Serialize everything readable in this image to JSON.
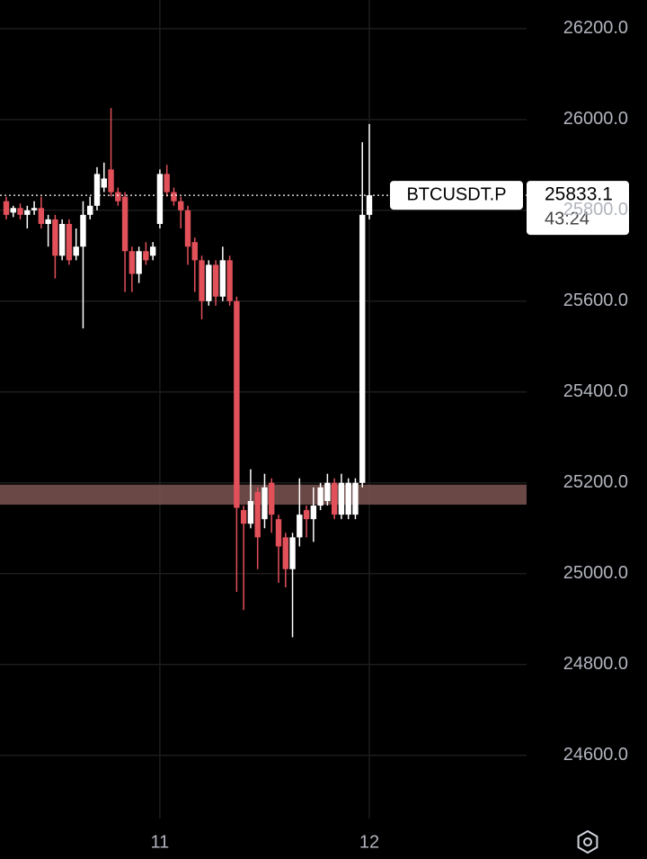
{
  "chart_data": {
    "type": "candlestick",
    "symbol": "BTCUSDT.P",
    "last_price": 25833.1,
    "countdown": "43:24",
    "categories": [
      null,
      null,
      null,
      null,
      null,
      null,
      null,
      null,
      null,
      null,
      null,
      null,
      null,
      null,
      null,
      null,
      null,
      null,
      null,
      null,
      null,
      null,
      "11",
      null,
      null,
      null,
      null,
      null,
      null,
      null,
      null,
      null,
      null,
      null,
      null,
      null,
      null,
      null,
      null,
      null,
      null,
      null,
      null,
      null,
      null,
      null,
      null,
      null,
      null,
      null,
      null,
      null,
      "12"
    ],
    "open": [
      25820,
      25795,
      25805,
      25790,
      25800,
      25805,
      25770,
      25780,
      25700,
      25770,
      25700,
      25720,
      25790,
      25810,
      25850,
      25890,
      25840,
      25830,
      25710,
      25660,
      25710,
      25700,
      25770,
      25880,
      25840,
      25820,
      25800,
      25730,
      25690,
      25600,
      25680,
      25610,
      25690,
      25600,
      25140,
      25110,
      25180,
      25120,
      25200,
      25120,
      25080,
      25010,
      25080,
      25140,
      25120,
      25150,
      25160,
      25200,
      25130,
      25130,
      25130,
      25200,
      25790
    ],
    "high": [
      25830,
      25810,
      25815,
      25810,
      25820,
      25830,
      25790,
      25790,
      25780,
      25780,
      25760,
      25820,
      25830,
      25895,
      25905,
      26025,
      25850,
      25840,
      25720,
      25720,
      25730,
      25730,
      25890,
      25900,
      25850,
      25830,
      25810,
      25740,
      25700,
      25690,
      25690,
      25720,
      25700,
      25610,
      25150,
      25230,
      25190,
      25220,
      25210,
      25130,
      25090,
      25090,
      25210,
      25150,
      25190,
      25200,
      25220,
      25210,
      25220,
      25210,
      25210,
      25950,
      25990
    ],
    "low": [
      25780,
      25785,
      25780,
      25760,
      25790,
      25760,
      25720,
      25650,
      25690,
      25680,
      25690,
      25540,
      25780,
      25800,
      25840,
      25830,
      25810,
      25620,
      25620,
      25640,
      25680,
      25690,
      25760,
      25830,
      25810,
      25760,
      25680,
      25620,
      25560,
      25590,
      25590,
      25600,
      25590,
      24960,
      24920,
      25100,
      25010,
      25100,
      25090,
      24980,
      24970,
      24860,
      25060,
      25080,
      25070,
      25140,
      25150,
      25120,
      25120,
      25120,
      25120,
      25190,
      25780
    ],
    "close": [
      25790,
      25805,
      25790,
      25800,
      25805,
      25770,
      25780,
      25700,
      25770,
      25690,
      25720,
      25790,
      25810,
      25880,
      25870,
      25840,
      25820,
      25710,
      25660,
      25710,
      25690,
      25720,
      25880,
      25840,
      25820,
      25800,
      25720,
      25690,
      25600,
      25680,
      25610,
      25690,
      25600,
      25145,
      25110,
      25160,
      25080,
      25190,
      25130,
      25060,
      25010,
      25080,
      25130,
      25120,
      25150,
      25190,
      25200,
      25130,
      25200,
      25200,
      25200,
      25790,
      25833.1
    ],
    "up_color": "#ffffff",
    "down_color": "#e2505a",
    "zone": [
      25152,
      25196
    ],
    "zone_color": "#7d5552",
    "ylim": [
      24461,
      26263
    ],
    "yticks": [
      {
        "value": 24600,
        "label": "24600.0"
      },
      {
        "value": 24800,
        "label": "24800.0"
      },
      {
        "value": 25000,
        "label": "25000.0"
      },
      {
        "value": 25200,
        "label": "25200.0"
      },
      {
        "value": 25400,
        "label": "25400.0"
      },
      {
        "value": 25600,
        "label": "25600.0"
      },
      {
        "value": 25800,
        "label": "25800.0"
      },
      {
        "value": 26000,
        "label": "26000.0"
      },
      {
        "value": 26200,
        "label": "26200.0"
      }
    ],
    "grid": true
  }
}
